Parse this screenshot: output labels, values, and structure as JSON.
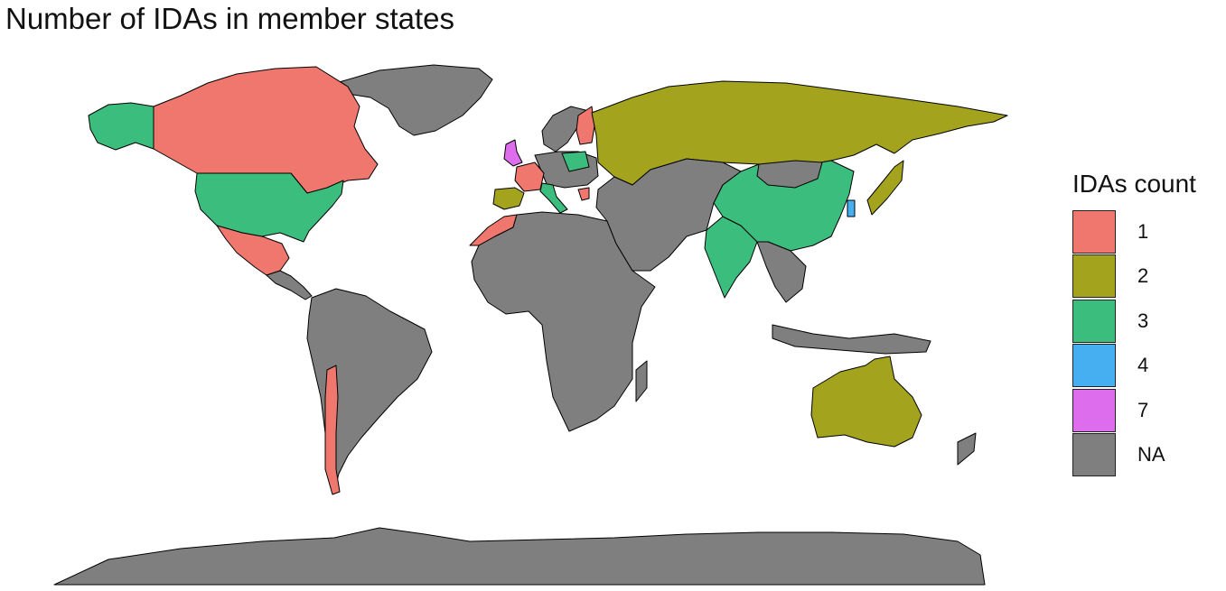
{
  "title": "Number of IDAs in member states",
  "legend": {
    "title": "IDAs count",
    "items": [
      {
        "label": "1",
        "color": "#F0776D"
      },
      {
        "label": "2",
        "color": "#A3A31E"
      },
      {
        "label": "3",
        "color": "#3BBD7D"
      },
      {
        "label": "4",
        "color": "#45AFF2"
      },
      {
        "label": "7",
        "color": "#DD6DED"
      },
      {
        "label": "NA",
        "color": "#7F7F7F"
      }
    ]
  },
  "countries": [
    {
      "name": "Canada",
      "value": "1"
    },
    {
      "name": "Mexico",
      "value": "1"
    },
    {
      "name": "Chile",
      "value": "1"
    },
    {
      "name": "Morocco",
      "value": "1"
    },
    {
      "name": "France",
      "value": "1"
    },
    {
      "name": "Finland",
      "value": "1"
    },
    {
      "name": "Greece",
      "value": "1"
    },
    {
      "name": "Russia",
      "value": "2"
    },
    {
      "name": "Japan",
      "value": "2"
    },
    {
      "name": "Australia",
      "value": "2"
    },
    {
      "name": "Spain",
      "value": "2"
    },
    {
      "name": "United States",
      "value": "3"
    },
    {
      "name": "Alaska",
      "value": "3"
    },
    {
      "name": "China",
      "value": "3"
    },
    {
      "name": "India",
      "value": "3"
    },
    {
      "name": "Italy",
      "value": "3"
    },
    {
      "name": "Poland",
      "value": "3"
    },
    {
      "name": "South Korea",
      "value": "4"
    },
    {
      "name": "United Kingdom",
      "value": "7"
    },
    {
      "name": "Greenland",
      "value": "NA"
    },
    {
      "name": "South America",
      "value": "NA"
    },
    {
      "name": "Africa",
      "value": "NA"
    },
    {
      "name": "Middle East and Central Asia",
      "value": "NA"
    },
    {
      "name": "Southeast Asia",
      "value": "NA"
    },
    {
      "name": "Scandinavia",
      "value": "NA"
    },
    {
      "name": "Antarctica",
      "value": "NA"
    }
  ]
}
